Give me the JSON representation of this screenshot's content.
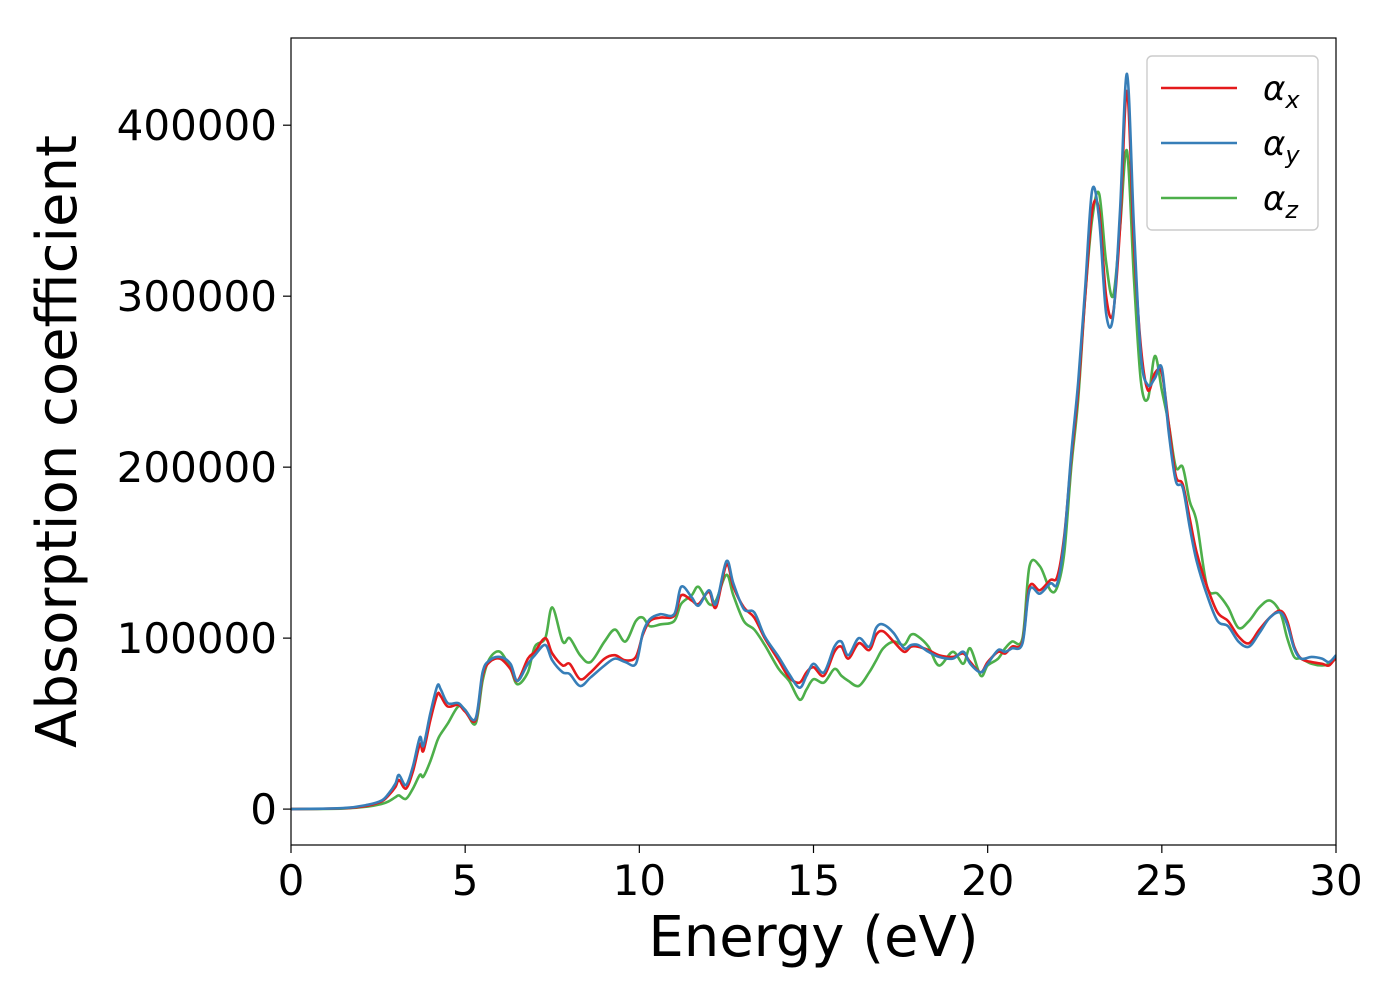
{
  "chart_data": {
    "type": "line",
    "title": "",
    "xlabel": "Energy (eV)",
    "ylabel": "Absorption coefficient",
    "xlim": [
      0,
      30
    ],
    "ylim": [
      -21000,
      451000
    ],
    "xticks": [
      0,
      5,
      10,
      15,
      20,
      25,
      30
    ],
    "xtick_labels": [
      "0",
      "5",
      "10",
      "15",
      "20",
      "25",
      "30"
    ],
    "yticks": [
      0,
      100000,
      200000,
      300000,
      400000
    ],
    "ytick_labels": [
      "0",
      "100000",
      "200000",
      "300000",
      "400000"
    ],
    "grid": false,
    "legend_position": "top-right",
    "series": [
      {
        "name": "αx",
        "legend_main": "α",
        "legend_sub": "x",
        "color": "#e41a1c",
        "x": [
          0,
          1.5,
          2.2,
          2.6,
          2.8,
          3.0,
          3.1,
          3.3,
          3.5,
          3.7,
          3.8,
          4.0,
          4.2,
          4.3,
          4.5,
          4.8,
          5.0,
          5.3,
          5.5,
          5.7,
          6.0,
          6.3,
          6.5,
          6.8,
          7.0,
          7.3,
          7.5,
          7.8,
          8.0,
          8.3,
          8.6,
          9.0,
          9.3,
          9.6,
          9.9,
          10.1,
          10.3,
          10.6,
          11.0,
          11.2,
          11.5,
          11.7,
          12.0,
          12.2,
          12.5,
          12.7,
          13.0,
          13.3,
          13.6,
          14.0,
          14.3,
          14.6,
          14.8,
          15.0,
          15.3,
          15.6,
          15.8,
          16.0,
          16.3,
          16.6,
          16.8,
          17.0,
          17.3,
          17.6,
          17.8,
          18.0,
          18.3,
          18.6,
          19.0,
          19.3,
          19.5,
          19.8,
          20.0,
          20.3,
          20.5,
          20.7,
          21.0,
          21.2,
          21.5,
          21.8,
          22.0,
          22.2,
          22.4,
          22.6,
          22.8,
          23.0,
          23.2,
          23.4,
          23.6,
          23.8,
          24.0,
          24.2,
          24.4,
          24.6,
          24.8,
          25.0,
          25.2,
          25.4,
          25.6,
          25.8,
          26.0,
          26.3,
          26.6,
          26.9,
          27.2,
          27.5,
          27.8,
          28.1,
          28.4,
          28.6,
          28.8,
          29.0,
          29.3,
          29.6,
          29.8,
          30.0
        ],
        "y": [
          0,
          500,
          2000,
          4500,
          8000,
          13000,
          17000,
          12000,
          22000,
          38000,
          34000,
          52000,
          67000,
          66000,
          60000,
          61000,
          57000,
          52000,
          78000,
          86000,
          88000,
          82000,
          75000,
          88000,
          92000,
          100000,
          91000,
          84000,
          85000,
          76000,
          80000,
          88000,
          90000,
          87000,
          89000,
          102000,
          110000,
          112000,
          113000,
          125000,
          122000,
          120000,
          127000,
          118000,
          143000,
          130000,
          118000,
          112000,
          100000,
          87000,
          77000,
          74000,
          80000,
          83000,
          78000,
          92000,
          95000,
          88000,
          97000,
          93000,
          102000,
          104000,
          98000,
          92000,
          95000,
          95000,
          93000,
          90000,
          89000,
          91000,
          86000,
          80000,
          86000,
          92000,
          91000,
          95000,
          98000,
          130000,
          128000,
          134000,
          136000,
          160000,
          205000,
          245000,
          300000,
          350000,
          350000,
          300000,
          290000,
          340000,
          420000,
          330000,
          270000,
          245000,
          255000,
          255000,
          225000,
          195000,
          190000,
          170000,
          150000,
          130000,
          115000,
          110000,
          101000,
          97000,
          105000,
          112000,
          116000,
          110000,
          95000,
          88000,
          86000,
          85000,
          84000,
          89000
        ]
      },
      {
        "name": "αy",
        "legend_main": "α",
        "legend_sub": "y",
        "color": "#377eb8",
        "x": [
          0,
          1.5,
          2.2,
          2.6,
          2.8,
          3.0,
          3.1,
          3.3,
          3.5,
          3.7,
          3.8,
          4.0,
          4.2,
          4.3,
          4.5,
          4.8,
          5.0,
          5.3,
          5.5,
          5.7,
          6.0,
          6.3,
          6.5,
          6.8,
          7.0,
          7.3,
          7.5,
          7.8,
          8.0,
          8.3,
          8.6,
          9.0,
          9.3,
          9.6,
          9.9,
          10.1,
          10.3,
          10.6,
          11.0,
          11.2,
          11.5,
          11.7,
          12.0,
          12.2,
          12.5,
          12.7,
          13.0,
          13.3,
          13.6,
          14.0,
          14.3,
          14.6,
          14.8,
          15.0,
          15.3,
          15.6,
          15.8,
          16.0,
          16.3,
          16.6,
          16.8,
          17.0,
          17.3,
          17.6,
          17.8,
          18.0,
          18.3,
          18.6,
          19.0,
          19.3,
          19.5,
          19.8,
          20.0,
          20.3,
          20.5,
          20.7,
          21.0,
          21.2,
          21.5,
          21.8,
          22.0,
          22.2,
          22.4,
          22.6,
          22.8,
          23.0,
          23.2,
          23.4,
          23.6,
          23.8,
          24.0,
          24.2,
          24.4,
          24.6,
          24.8,
          25.0,
          25.2,
          25.4,
          25.6,
          25.8,
          26.0,
          26.3,
          26.6,
          26.9,
          27.2,
          27.5,
          27.8,
          28.1,
          28.4,
          28.6,
          28.8,
          29.0,
          29.3,
          29.6,
          29.8,
          30.0
        ],
        "y": [
          0,
          600,
          2500,
          5000,
          9000,
          15000,
          20000,
          14000,
          25000,
          42000,
          37000,
          56000,
          72000,
          70000,
          62000,
          62000,
          58000,
          53000,
          80000,
          87000,
          89000,
          85000,
          75000,
          85000,
          90000,
          96000,
          87000,
          80000,
          79000,
          72000,
          77000,
          84000,
          88000,
          86000,
          85000,
          103000,
          111000,
          114000,
          114000,
          130000,
          124000,
          119000,
          128000,
          120000,
          145000,
          132000,
          117000,
          115000,
          101000,
          89000,
          79000,
          71000,
          78000,
          85000,
          80000,
          95000,
          98000,
          90000,
          100000,
          95000,
          106000,
          108000,
          103000,
          94000,
          96000,
          96000,
          92000,
          89000,
          88000,
          92000,
          85000,
          80000,
          85000,
          93000,
          92000,
          94000,
          97000,
          128000,
          126000,
          132000,
          132000,
          158000,
          208000,
          250000,
          305000,
          362000,
          345000,
          290000,
          288000,
          350000,
          430000,
          340000,
          265000,
          248000,
          252000,
          258000,
          220000,
          192000,
          188000,
          165000,
          145000,
          125000,
          110000,
          107000,
          98000,
          95000,
          103000,
          112000,
          115000,
          108000,
          94000,
          88000,
          89000,
          88000,
          86000,
          90000
        ]
      },
      {
        "name": "αz",
        "legend_main": "α",
        "legend_sub": "z",
        "color": "#4daf4a",
        "x": [
          0,
          1.5,
          2.2,
          2.6,
          2.8,
          3.0,
          3.1,
          3.3,
          3.5,
          3.7,
          3.8,
          4.0,
          4.2,
          4.3,
          4.5,
          4.8,
          5.0,
          5.3,
          5.5,
          5.7,
          6.0,
          6.3,
          6.5,
          6.8,
          7.0,
          7.3,
          7.5,
          7.8,
          8.0,
          8.3,
          8.6,
          9.0,
          9.3,
          9.6,
          9.9,
          10.1,
          10.3,
          10.6,
          11.0,
          11.2,
          11.5,
          11.7,
          12.0,
          12.2,
          12.5,
          12.7,
          13.0,
          13.3,
          13.6,
          14.0,
          14.3,
          14.6,
          14.8,
          15.0,
          15.3,
          15.6,
          15.8,
          16.0,
          16.3,
          16.6,
          16.8,
          17.0,
          17.3,
          17.6,
          17.8,
          18.0,
          18.3,
          18.6,
          19.0,
          19.3,
          19.5,
          19.8,
          20.0,
          20.3,
          20.5,
          20.7,
          21.0,
          21.2,
          21.5,
          21.8,
          22.0,
          22.2,
          22.4,
          22.6,
          22.8,
          23.0,
          23.2,
          23.4,
          23.6,
          23.8,
          24.0,
          24.2,
          24.4,
          24.6,
          24.8,
          25.0,
          25.2,
          25.4,
          25.6,
          25.8,
          26.0,
          26.3,
          26.6,
          26.9,
          27.2,
          27.5,
          27.8,
          28.1,
          28.4,
          28.6,
          28.8,
          29.0,
          29.3,
          29.6,
          29.8,
          30.0
        ],
        "y": [
          0,
          300,
          1500,
          3000,
          4500,
          7000,
          8000,
          6000,
          12000,
          20000,
          19000,
          28000,
          40000,
          44000,
          50000,
          60000,
          58000,
          50000,
          75000,
          88000,
          92000,
          82000,
          73000,
          80000,
          95000,
          100000,
          118000,
          98000,
          100000,
          90000,
          86000,
          98000,
          105000,
          98000,
          110000,
          112000,
          107000,
          108000,
          110000,
          120000,
          125000,
          130000,
          120000,
          122000,
          137000,
          125000,
          110000,
          105000,
          96000,
          82000,
          75000,
          64000,
          70000,
          76000,
          74000,
          82000,
          78000,
          75000,
          72000,
          80000,
          87000,
          94000,
          98000,
          96000,
          102000,
          101000,
          95000,
          84000,
          92000,
          85000,
          94000,
          78000,
          84000,
          88000,
          94000,
          98000,
          100000,
          142000,
          142000,
          128000,
          130000,
          150000,
          200000,
          240000,
          300000,
          345000,
          360000,
          320000,
          300000,
          340000,
          385000,
          310000,
          250000,
          240000,
          265000,
          245000,
          225000,
          200000,
          200000,
          180000,
          168000,
          130000,
          126000,
          118000,
          106000,
          110000,
          118000,
          122000,
          115000,
          100000,
          89000,
          88000,
          85000,
          84000,
          85000,
          88000
        ]
      }
    ]
  }
}
